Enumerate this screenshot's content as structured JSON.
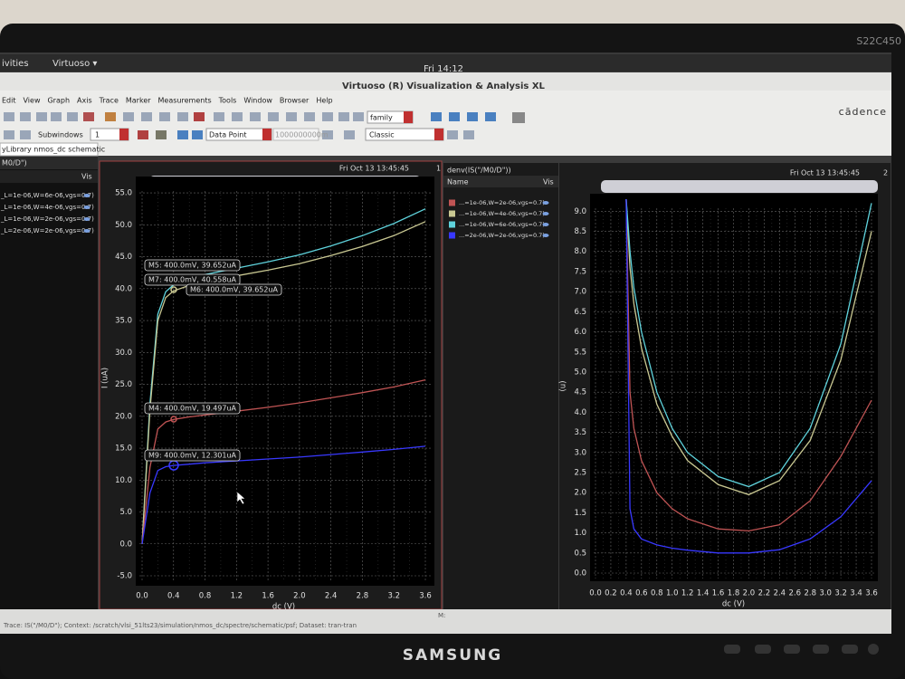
{
  "monitor": {
    "brand": "SAMSUNG",
    "model": "S22C450"
  },
  "topbar": {
    "activities": "ivities",
    "app": "Virtuoso ▾",
    "clock": "Fri 14:12"
  },
  "window": {
    "title": "Virtuoso (R) Visualization & Analysis XL",
    "menu": [
      "Edit",
      "View",
      "Graph",
      "Axis",
      "Trace",
      "Marker",
      "Measurements",
      "Tools",
      "Window",
      "Browser",
      "Help"
    ],
    "logo": "cādence"
  },
  "toolbar": {
    "family": "family",
    "subwindows_label": "Subwindows",
    "subwindows": "1",
    "snap": "Data Point",
    "step": "1000000000m",
    "style": "Classic"
  },
  "tab": "yLibrary nmos_dc schematic",
  "left_panel": {
    "header": "M0/D\")",
    "vis": "Vis"
  },
  "status": {
    "trace": "Trace: IS(\"/M0/D\"); Context: /scratch/vlsi_51lts23/simulation/nmos_dc/spectre/schematic/psf; Dataset: tran-tran",
    "marker": "M:"
  },
  "chart_data": [
    {
      "type": "line",
      "date": "Fri Oct 13 13:45:45",
      "index": "1",
      "xlabel": "dc (V)",
      "ylabel": "I (uA)",
      "x": [
        0,
        0.1,
        0.2,
        0.3,
        0.4,
        0.6,
        0.8,
        1.2,
        1.6,
        2.0,
        2.4,
        2.8,
        3.2,
        3.6
      ],
      "series": [
        {
          "name": "_L=1e-06,W=6e-06,vgs=0.7)",
          "color": "#5fd3dc",
          "values": [
            0,
            22,
            36,
            39.5,
            40.6,
            41.5,
            42.2,
            43.2,
            44.2,
            45.3,
            46.7,
            48.3,
            50.2,
            52.5
          ]
        },
        {
          "name": "_L=1e-06,W=4e-06,vgs=0.7)",
          "color": "#c9c892",
          "values": [
            0,
            21,
            35,
            38.6,
            39.65,
            40.5,
            41.1,
            42,
            42.9,
            43.9,
            45.2,
            46.6,
            48.3,
            50.5
          ]
        },
        {
          "name": "_L=1e-06,W=2e-06,vgs=0.7)",
          "color": "#c05454",
          "values": [
            0,
            12,
            18,
            19.1,
            19.5,
            19.9,
            20.2,
            20.8,
            21.4,
            22.1,
            22.9,
            23.7,
            24.6,
            25.7
          ]
        },
        {
          "name": "_L=2e-06,W=2e-06,vgs=0.7)",
          "color": "#3838ff",
          "values": [
            0,
            8,
            11.5,
            12.1,
            12.3,
            12.5,
            12.7,
            13,
            13.3,
            13.6,
            14,
            14.4,
            14.8,
            15.3
          ]
        }
      ],
      "markers": [
        "M5: 400.0mV, 39.652uA",
        "M7: 400.0mV, 40.558uA",
        "M6: 400.0mV, 39.652uA",
        "M4: 400.0mV, 19.497uA",
        "M9: 400.0mV, 12.301uA"
      ],
      "xlim": [
        0,
        3.6
      ],
      "xticks": [
        {
          "value": 0,
          "label": "0.0"
        },
        {
          "value": 0.4,
          "label": "0.4"
        },
        {
          "value": 0.8,
          "label": "0.8"
        },
        {
          "value": 1.2,
          "label": "1.2"
        },
        {
          "value": 1.6,
          "label": "1.6"
        },
        {
          "value": 2.0,
          "label": "2.0"
        },
        {
          "value": 2.4,
          "label": "2.4"
        },
        {
          "value": 2.8,
          "label": "2.8"
        },
        {
          "value": 3.2,
          "label": "3.2"
        },
        {
          "value": 3.6,
          "label": "3.6"
        }
      ],
      "ylim": [
        -5,
        57
      ],
      "yticks": [
        {
          "value": -5,
          "label": "-5.0"
        },
        {
          "value": 0,
          "label": "0.0"
        },
        {
          "value": 5,
          "label": "5.0"
        },
        {
          "value": 10,
          "label": "10.0"
        },
        {
          "value": 15,
          "label": "15.0"
        },
        {
          "value": 20,
          "label": "20.0"
        },
        {
          "value": 25,
          "label": "25.0"
        },
        {
          "value": 30,
          "label": "30.0"
        },
        {
          "value": 35,
          "label": "35.0"
        },
        {
          "value": 40,
          "label": "40.0"
        },
        {
          "value": 45,
          "label": "45.0"
        },
        {
          "value": 50,
          "label": "50.0"
        },
        {
          "value": 55,
          "label": "55.0"
        }
      ],
      "grid": true
    },
    {
      "type": "line",
      "title": "denv(IS(\"/M0/D\"))",
      "legend_header": "Name",
      "vis": "Vis",
      "date": "Fri Oct 13 13:45:45",
      "index": "2",
      "xlabel": "dc (V)",
      "ylabel": "(u)",
      "x": [
        0.4,
        0.45,
        0.5,
        0.6,
        0.8,
        1.0,
        1.2,
        1.6,
        2.0,
        2.4,
        2.8,
        3.2,
        3.6
      ],
      "series": [
        {
          "name": "...=1e-06,W=2e-06,vgs=0.7)",
          "color": "#c05454",
          "values": [
            9.3,
            4.5,
            3.6,
            2.8,
            2.0,
            1.6,
            1.35,
            1.1,
            1.05,
            1.2,
            1.8,
            2.9,
            4.3
          ]
        },
        {
          "name": "...=1e-06,W=4e-06,vgs=0.7)",
          "color": "#c9c892",
          "values": [
            9.3,
            7.6,
            6.7,
            5.6,
            4.2,
            3.4,
            2.8,
            2.2,
            1.95,
            2.3,
            3.3,
            5.3,
            8.5
          ]
        },
        {
          "name": "...=1e-06,W=6e-06,vgs=0.7)",
          "color": "#5fd3dc",
          "values": [
            9.3,
            8.0,
            7.1,
            6.0,
            4.5,
            3.6,
            3.0,
            2.4,
            2.15,
            2.5,
            3.6,
            5.7,
            9.2
          ]
        },
        {
          "name": "...=2e-06,W=2e-06,vgs=0.7)",
          "color": "#3838ff",
          "values": [
            9.3,
            1.6,
            1.1,
            0.85,
            0.7,
            0.62,
            0.57,
            0.5,
            0.5,
            0.58,
            0.85,
            1.4,
            2.3
          ]
        }
      ],
      "xlim": [
        0,
        3.6
      ],
      "xticks": [
        {
          "value": 0,
          "label": "0.0"
        },
        {
          "value": 0.2,
          "label": "0.2"
        },
        {
          "value": 0.4,
          "label": "0.4"
        },
        {
          "value": 0.6,
          "label": "0.6"
        },
        {
          "value": 0.8,
          "label": "0.8"
        },
        {
          "value": 1.0,
          "label": "1.0"
        },
        {
          "value": 1.2,
          "label": "1.2"
        },
        {
          "value": 1.4,
          "label": "1.4"
        },
        {
          "value": 1.6,
          "label": "1.6"
        },
        {
          "value": 1.8,
          "label": "1.8"
        },
        {
          "value": 2.0,
          "label": "2.0"
        },
        {
          "value": 2.2,
          "label": "2.2"
        },
        {
          "value": 2.4,
          "label": "2.4"
        },
        {
          "value": 2.6,
          "label": "2.6"
        },
        {
          "value": 2.8,
          "label": "2.8"
        },
        {
          "value": 3.0,
          "label": "3.0"
        },
        {
          "value": 3.2,
          "label": "3.2"
        },
        {
          "value": 3.4,
          "label": "3.4"
        },
        {
          "value": 3.6,
          "label": "3.6"
        }
      ],
      "ylim": [
        0,
        9.3
      ],
      "yticks": [
        {
          "value": 0,
          "label": "0.0"
        },
        {
          "value": 0.5,
          "label": "0.5"
        },
        {
          "value": 1.0,
          "label": "1.0"
        },
        {
          "value": 1.5,
          "label": "1.5"
        },
        {
          "value": 2.0,
          "label": "2.0"
        },
        {
          "value": 2.5,
          "label": "2.5"
        },
        {
          "value": 3.0,
          "label": "3.0"
        },
        {
          "value": 3.5,
          "label": "3.5"
        },
        {
          "value": 4.0,
          "label": "4.0"
        },
        {
          "value": 4.5,
          "label": "4.5"
        },
        {
          "value": 5.0,
          "label": "5.0"
        },
        {
          "value": 5.5,
          "label": "5.5"
        },
        {
          "value": 6.0,
          "label": "6.0"
        },
        {
          "value": 6.5,
          "label": "6.5"
        },
        {
          "value": 7.0,
          "label": "7.0"
        },
        {
          "value": 7.5,
          "label": "7.5"
        },
        {
          "value": 8.0,
          "label": "8.0"
        },
        {
          "value": 8.5,
          "label": "8.5"
        },
        {
          "value": 9.0,
          "label": "9.0"
        }
      ],
      "grid": true
    }
  ]
}
